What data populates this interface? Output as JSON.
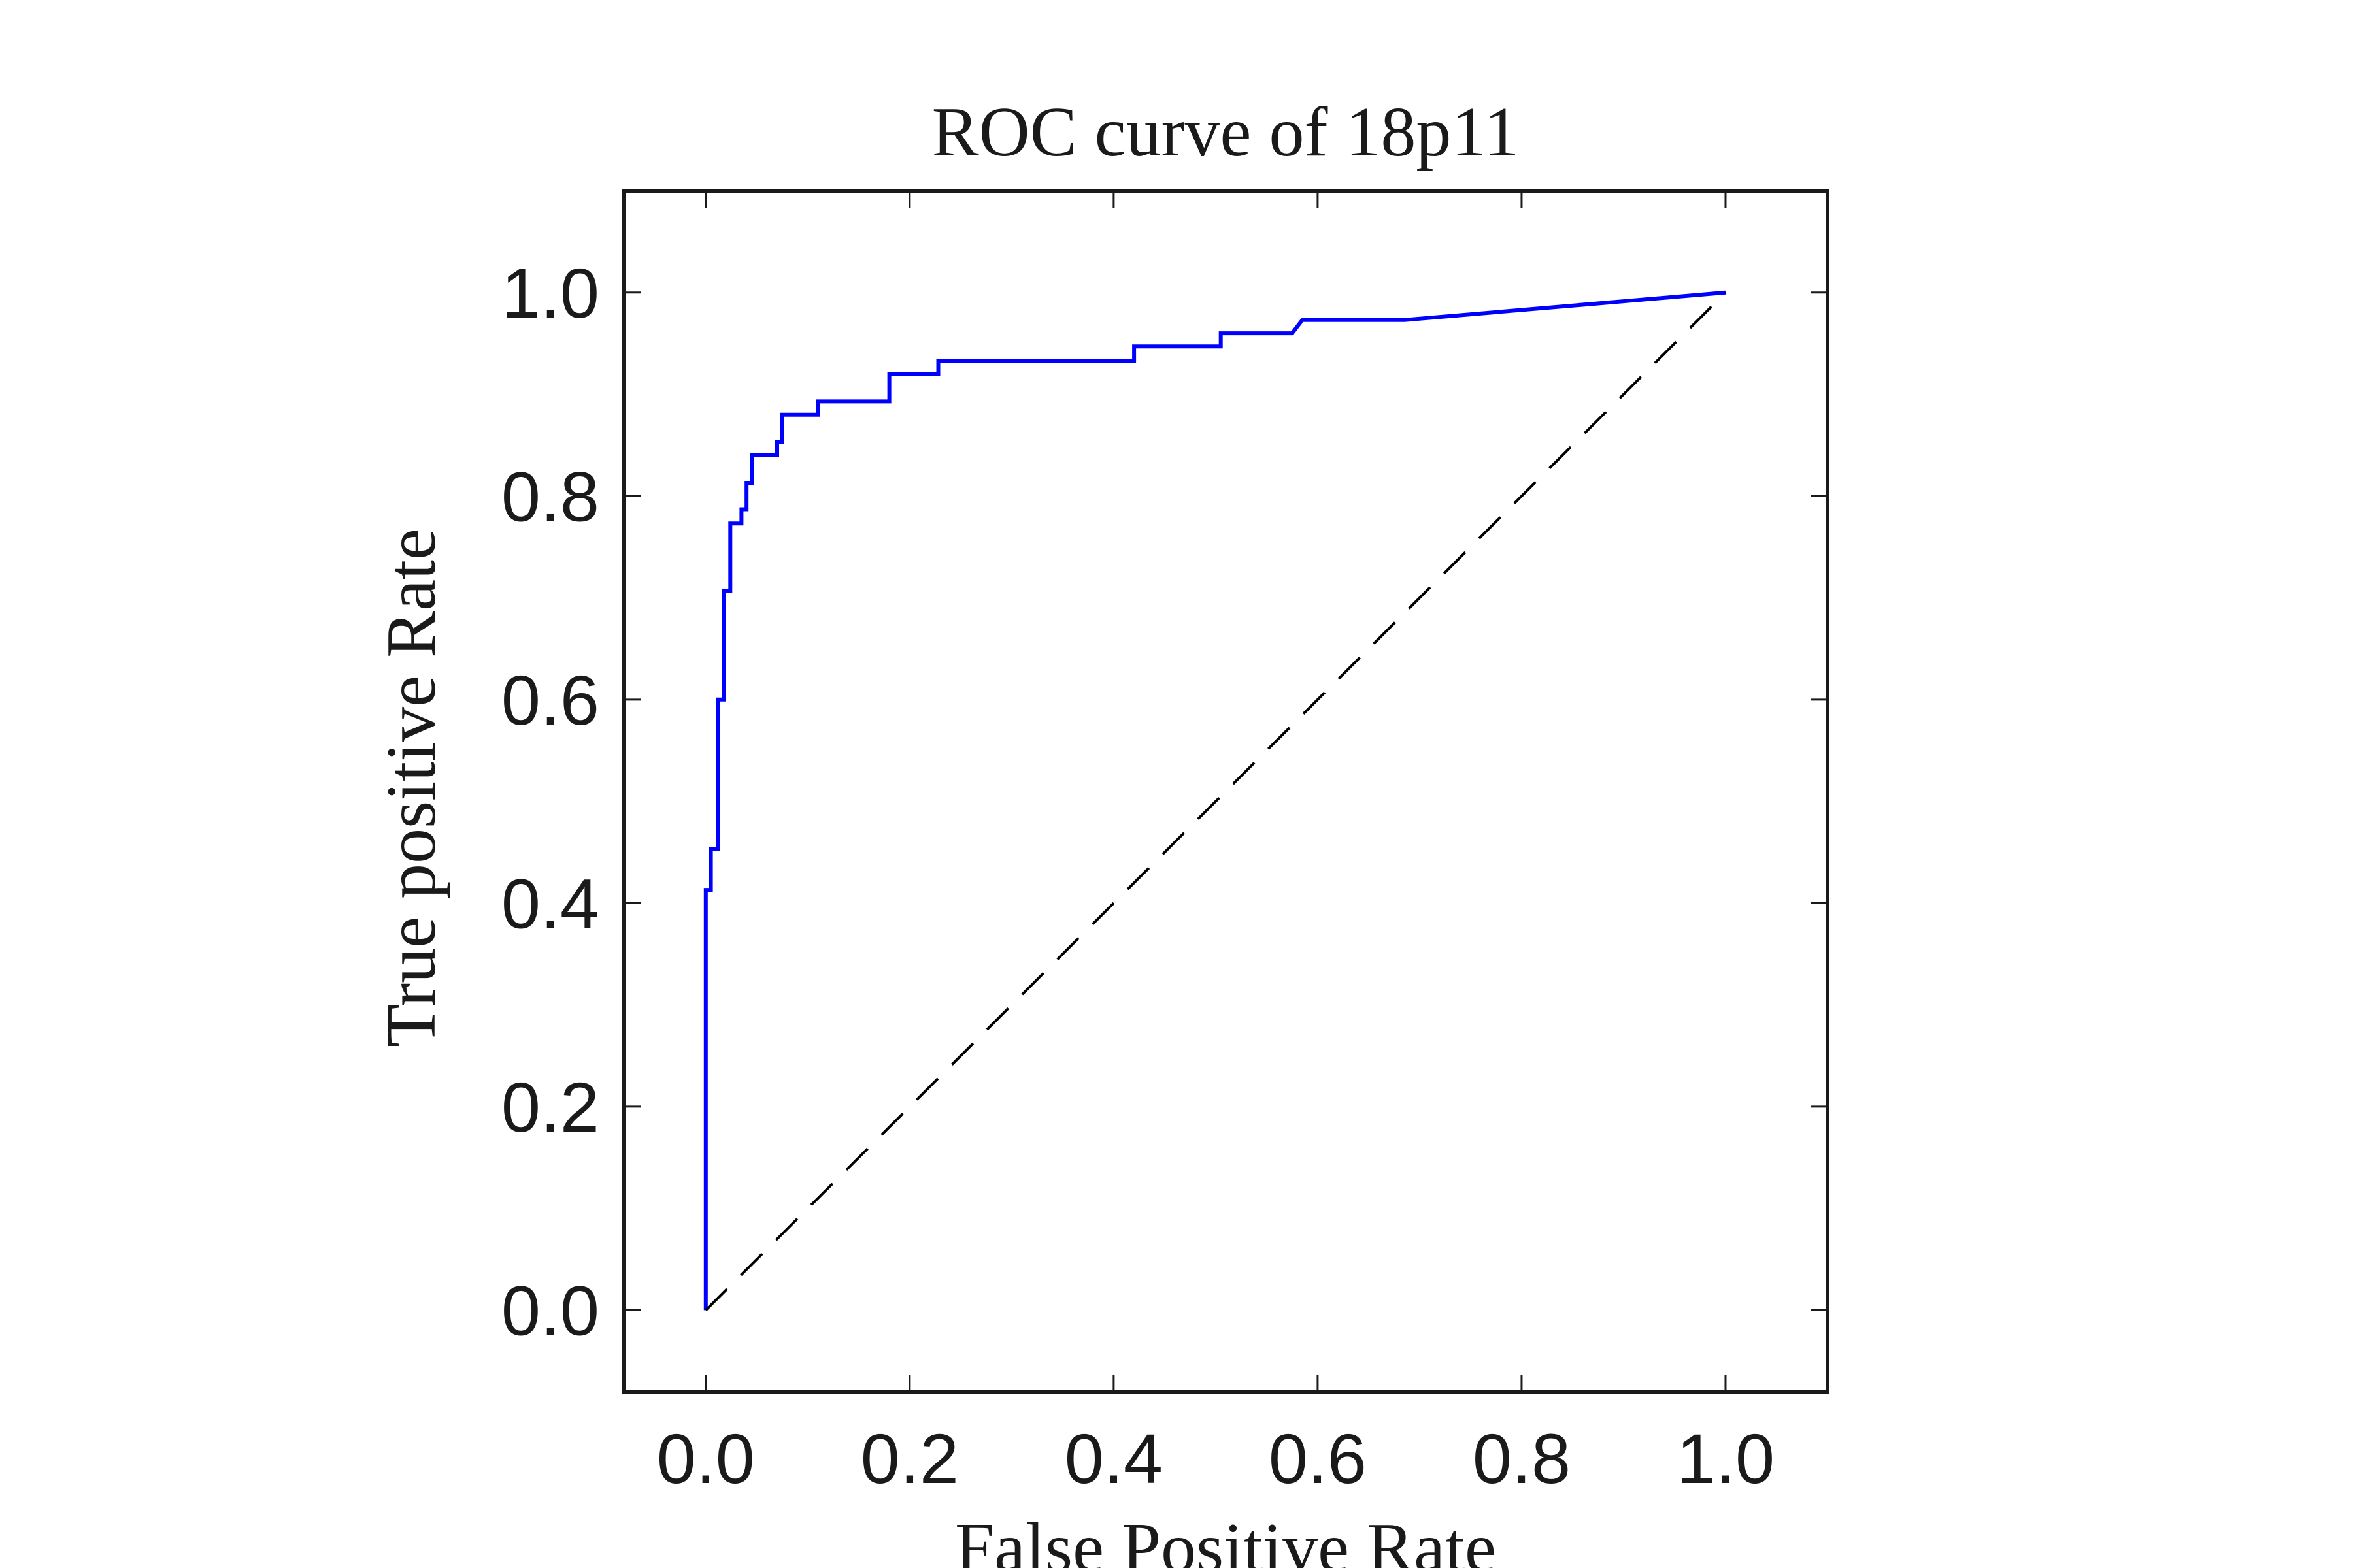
{
  "chart_data": {
    "type": "line",
    "title": "ROC curve of 18p11",
    "xlabel": "False Positive Rate",
    "ylabel": "True positive Rate",
    "xlim": [
      -0.08,
      1.1
    ],
    "ylim": [
      -0.08,
      1.1
    ],
    "xticks": [
      0.0,
      0.2,
      0.4,
      0.6,
      0.8,
      1.0
    ],
    "yticks": [
      0.0,
      0.2,
      0.4,
      0.6,
      0.8,
      1.0
    ],
    "xtick_labels": [
      "0.0",
      "0.2",
      "0.4",
      "0.6",
      "0.8",
      "1.0"
    ],
    "ytick_labels": [
      "0.0",
      "0.2",
      "0.4",
      "0.6",
      "0.8",
      "1.0"
    ],
    "grid": false,
    "series": [
      {
        "color": "#0000ff",
        "style": "solid",
        "x": [
          0.0,
          0.0,
          0.005,
          0.005,
          0.012,
          0.012,
          0.018,
          0.018,
          0.024,
          0.024,
          0.035,
          0.035,
          0.04,
          0.04,
          0.045,
          0.045,
          0.07,
          0.07,
          0.075,
          0.075,
          0.11,
          0.11,
          0.18,
          0.18,
          0.228,
          0.228,
          0.42,
          0.42,
          0.505,
          0.505,
          0.575,
          0.585,
          0.685,
          1.0
        ],
        "y": [
          0.0,
          0.413,
          0.413,
          0.453,
          0.453,
          0.6,
          0.6,
          0.707,
          0.707,
          0.773,
          0.773,
          0.787,
          0.787,
          0.813,
          0.813,
          0.84,
          0.84,
          0.853,
          0.853,
          0.88,
          0.88,
          0.893,
          0.893,
          0.92,
          0.92,
          0.933,
          0.933,
          0.947,
          0.947,
          0.96,
          0.96,
          0.973,
          0.973,
          1.0
        ]
      },
      {
        "color": "#000000",
        "style": "dashed",
        "x": [
          0.0,
          1.0
        ],
        "y": [
          0.0,
          1.0
        ]
      }
    ]
  }
}
